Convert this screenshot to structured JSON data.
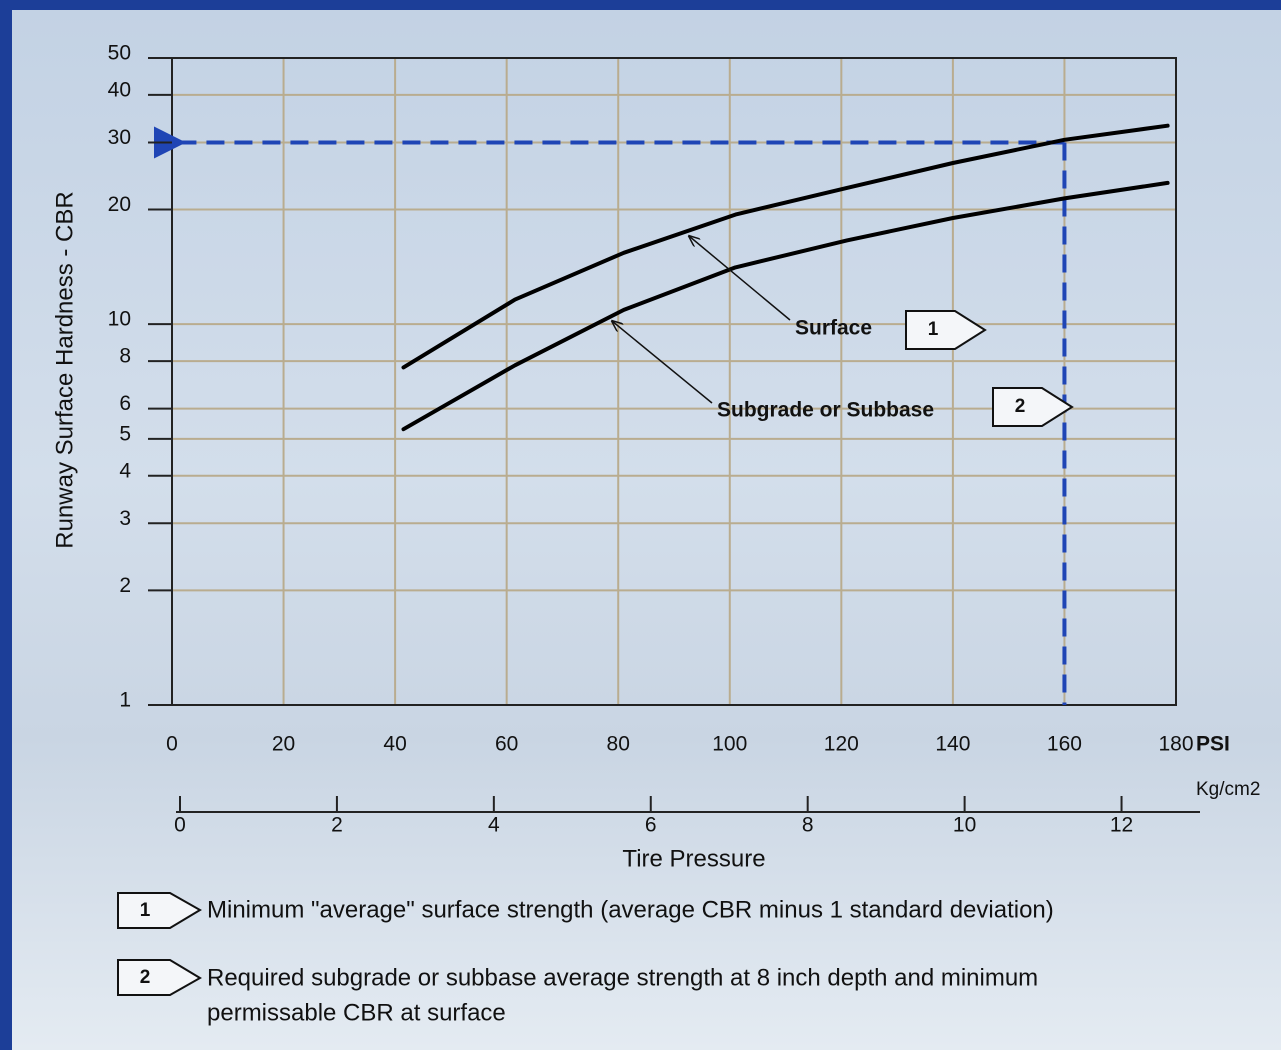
{
  "chart_data": {
    "type": "line",
    "y_label": "Runway Surface Hardness - CBR",
    "x_label": "Tire Pressure",
    "x_unit": "PSI",
    "x2_unit": "Kg/cm2",
    "xlim": [
      0,
      180
    ],
    "xticks": [
      0,
      20,
      40,
      60,
      80,
      100,
      120,
      140,
      160,
      180
    ],
    "x2lim": [
      0,
      13
    ],
    "x2ticks": [
      0,
      2,
      4,
      6,
      8,
      10,
      12
    ],
    "ylim": [
      1,
      50
    ],
    "yticks": [
      1,
      2,
      3,
      4,
      5,
      6,
      8,
      10,
      20,
      30,
      40,
      50
    ],
    "y_scale": "log",
    "grid": true,
    "series": [
      {
        "name": "Surface",
        "marker": "1",
        "color": "#000000",
        "x": [
          41.5,
          61.5,
          81,
          101,
          121,
          140,
          160,
          178.5
        ],
        "values": [
          7.7,
          11.6,
          15.4,
          19.4,
          22.8,
          26.5,
          30.5,
          33.2
        ]
      },
      {
        "name": "Subgrade or Subbase",
        "marker": "2",
        "color": "#000000",
        "x": [
          41.5,
          61.5,
          81,
          101,
          121,
          140,
          160,
          178.5
        ],
        "values": [
          5.3,
          7.8,
          10.9,
          14.1,
          16.6,
          19,
          21.4,
          23.5
        ]
      }
    ],
    "reference": {
      "x": 160,
      "y": 30,
      "color": "#1f45b5"
    },
    "notes": [
      {
        "marker": "1",
        "lines": [
          "Minimum \"average\" surface strength (average CBR minus 1 standard deviation)"
        ]
      },
      {
        "marker": "2",
        "lines": [
          "Required subgrade or subbase average strength at 8 inch depth and minimum",
          "permissable CBR at surface"
        ]
      }
    ]
  }
}
